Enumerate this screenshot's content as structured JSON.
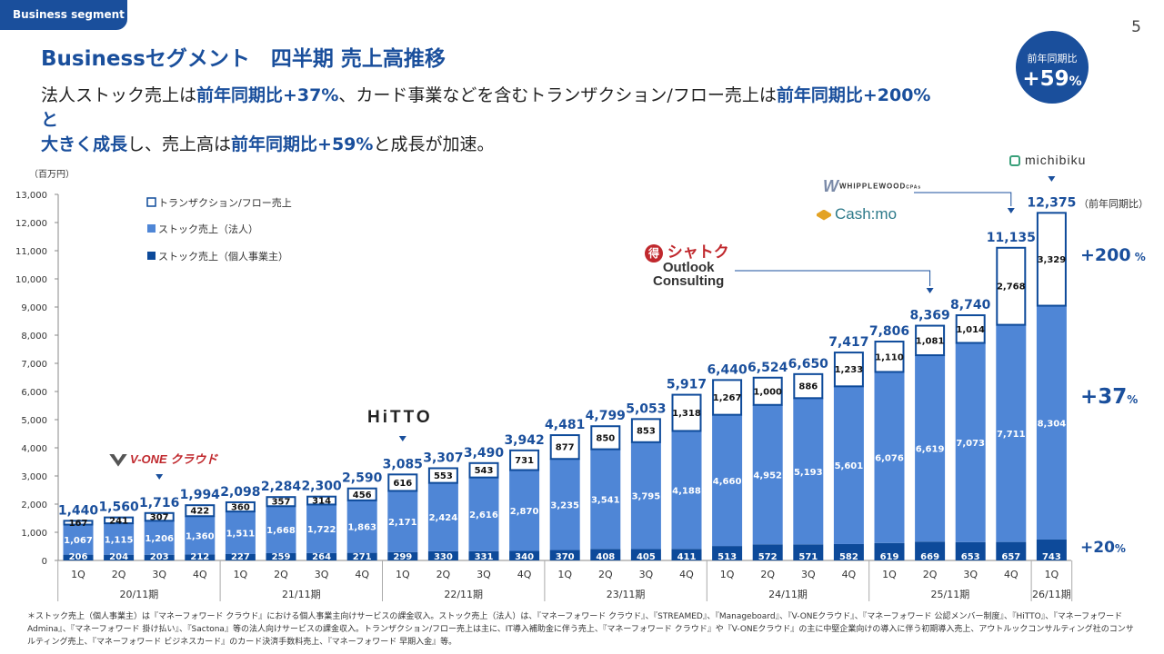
{
  "header": {
    "tag": "Business segment",
    "page_number": "5",
    "title": "Businessセグメント　四半期 売上高推移",
    "subtitle_line1": [
      {
        "t": "法人ストック売上は",
        "hl": false
      },
      {
        "t": "前年同期比+37%",
        "hl": true
      },
      {
        "t": "、カード事業などを含むトランザクション/フロー売上は",
        "hl": false
      },
      {
        "t": "前年同期比+200%と",
        "hl": true
      }
    ],
    "subtitle_line2": [
      {
        "t": "大きく成長",
        "hl": true
      },
      {
        "t": "し、売上高は",
        "hl": false
      },
      {
        "t": "前年同期比+59%",
        "hl": true
      },
      {
        "t": "と成長が加速。",
        "hl": false
      }
    ]
  },
  "badge": {
    "label": "前年同期比",
    "value": "+59",
    "unit": "%"
  },
  "brands": {
    "vone": "V-ONE クラウド",
    "hitto": "HiTTO",
    "shatoku": "シャトク",
    "outlook1": "Outlook",
    "outlook2": "Consulting",
    "whipplewood": "WHIPPLEWOOD",
    "whipplewood_sub": "CPAs",
    "cashmo": "Cash:mo",
    "michibiku": "michibiku"
  },
  "growth": {
    "title": "（前年同期比）",
    "items": [
      {
        "value": "+200",
        "unit": " %"
      },
      {
        "value": "+37",
        "unit": "%"
      },
      {
        "value": "+20",
        "unit": "%"
      }
    ]
  },
  "footnote": "＊ストック売上（個人事業主）は『マネーフォワード クラウド』における個人事業主向けサービスの課金収入。ストック売上（法人）は、『マネーフォワード クラウド』、『STREAMED』、『Manageboard』、『V-ONEクラウド』、『マネーフォワード 公認メンバー制度』、『HiTTO』、『マネーフォワード Admina』、『マネーフォワード 掛け払い』、『Sactona』等の法人向けサービスの課金収入。トランザクション/フロー売上は主に、IT導入補助金に伴う売上、『マネーフォワード クラウド』や『V-ONEクラウド』の主に中堅企業向けの導入に伴う初期導入売上、アウトルックコンサルティング社のコンサルティング売上、『マネーフォワード ビジネスカード』のカード決済手数料売上、『マネーフォワード 早期入金』等。",
  "chart_data": {
    "type": "bar",
    "stacked": true,
    "unit": "（百万円）",
    "ylim": [
      0,
      13000
    ],
    "yticks": [
      "0",
      "1,000",
      "2,000",
      "3,000",
      "4,000",
      "5,000",
      "6,000",
      "7,000",
      "8,000",
      "9,000",
      "10,000",
      "11,000",
      "12,000",
      "13,000"
    ],
    "categories": [
      "1Q",
      "2Q",
      "3Q",
      "4Q",
      "1Q",
      "2Q",
      "3Q",
      "4Q",
      "1Q",
      "2Q",
      "3Q",
      "4Q",
      "1Q",
      "2Q",
      "3Q",
      "4Q",
      "1Q",
      "2Q",
      "3Q",
      "4Q",
      "1Q",
      "2Q",
      "3Q",
      "4Q",
      "1Q"
    ],
    "periods": [
      {
        "label": "20/11期",
        "count": 4
      },
      {
        "label": "21/11期",
        "count": 4
      },
      {
        "label": "22/11期",
        "count": 4
      },
      {
        "label": "23/11期",
        "count": 4
      },
      {
        "label": "24/11期",
        "count": 4
      },
      {
        "label": "25/11期",
        "count": 4
      },
      {
        "label": "26/11期",
        "count": 1
      }
    ],
    "series": [
      {
        "name": "ストック売上（個人事業主）",
        "color": "#0d4a9a",
        "values": [
          206,
          204,
          203,
          212,
          227,
          259,
          264,
          271,
          299,
          330,
          331,
          340,
          370,
          408,
          405,
          411,
          513,
          572,
          571,
          582,
          619,
          669,
          653,
          657,
          743
        ]
      },
      {
        "name": "ストック売上（法人）",
        "color": "#4f86d6",
        "values": [
          1067,
          1115,
          1206,
          1360,
          1511,
          1668,
          1722,
          1863,
          2171,
          2424,
          2616,
          2870,
          3235,
          3541,
          3795,
          4188,
          4660,
          4952,
          5193,
          5601,
          6076,
          6619,
          7073,
          7711,
          8304
        ]
      },
      {
        "name": "トランザクション/フロー売上",
        "color": "#ffffff",
        "values": [
          167,
          241,
          307,
          422,
          360,
          357,
          314,
          456,
          616,
          553,
          543,
          731,
          877,
          850,
          853,
          1318,
          1267,
          1000,
          886,
          1233,
          1110,
          1081,
          1014,
          2768,
          3329
        ]
      }
    ],
    "totals": [
      1440,
      1560,
      1716,
      1994,
      2098,
      2284,
      2300,
      2590,
      3085,
      3307,
      3490,
      3942,
      4481,
      4799,
      5053,
      5917,
      6440,
      6524,
      6650,
      7417,
      7806,
      8369,
      8740,
      11135,
      12375
    ],
    "legend_order": [
      2,
      1,
      0
    ]
  }
}
